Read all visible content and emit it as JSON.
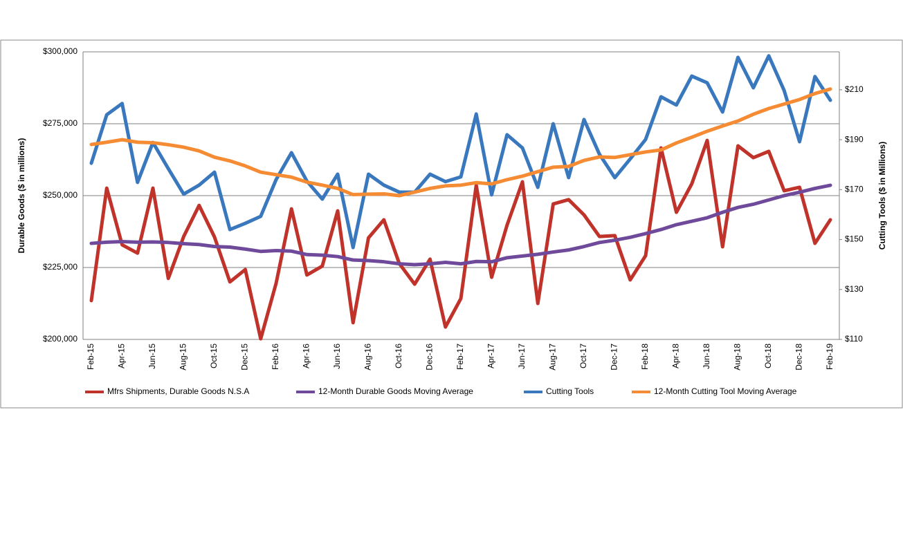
{
  "chart_data": {
    "type": "line",
    "y_label": "Durable Goods ($ in millions)",
    "y2_label": "Cutting Tools ($ in Millions)",
    "categories": [
      "Feb-15",
      null,
      "Apr-15",
      null,
      "Jun-15",
      null,
      "Aug-15",
      null,
      "Oct-15",
      null,
      "Dec-15",
      null,
      "Feb-16",
      null,
      "Apr-16",
      null,
      "Jun-16",
      null,
      "Aug-16",
      null,
      "Oct-16",
      null,
      "Dec-16",
      null,
      "Feb-17",
      null,
      "Apr-17",
      null,
      "Jun-17",
      null,
      "Aug-17",
      null,
      "Oct-17",
      null,
      "Dec-17",
      null,
      "Feb-18",
      null,
      "Apr-18",
      null,
      "Jun-18",
      null,
      "Aug-18",
      null,
      "Oct-18",
      null,
      "Dec-18",
      null,
      "Feb-19"
    ],
    "ylim": [
      200000,
      300000
    ],
    "yticks": [
      {
        "value": 200000,
        "label": "$200,000"
      },
      {
        "value": 225000,
        "label": "$225,000"
      },
      {
        "value": 250000,
        "label": "$250,000"
      },
      {
        "value": 275000,
        "label": "$275,000"
      },
      {
        "value": 300000,
        "label": "$300,000"
      }
    ],
    "y2lim": [
      110,
      225.2
    ],
    "y2ticks": [
      {
        "value": 110,
        "label": "$110"
      },
      {
        "value": 130,
        "label": "$130"
      },
      {
        "value": 150,
        "label": "$150"
      },
      {
        "value": 170,
        "label": "$170"
      },
      {
        "value": 190,
        "label": "$190"
      },
      {
        "value": 210,
        "label": "$210"
      }
    ],
    "grid": true,
    "legend": "bottom",
    "series": [
      {
        "name": "Mfrs Shipments, Durable Goods N.S.A",
        "color": "#c0332b",
        "values": [
          213500,
          252600,
          232900,
          230000,
          252600,
          221200,
          235800,
          246600,
          235600,
          220000,
          224300,
          200200,
          219500,
          245400,
          222400,
          225500,
          244700,
          205800,
          235300,
          241600,
          226400,
          219200,
          227900,
          204300,
          214200,
          253600,
          221600,
          239700,
          254800,
          212500,
          247100,
          248600,
          243300,
          235800,
          236100,
          220700,
          229100,
          266600,
          244200,
          254100,
          269200,
          232200,
          267300,
          263200,
          265400,
          251700,
          252900,
          233400,
          241600
        ]
      },
      {
        "name": "12-Month Durable Goods Moving Average",
        "color": "#6f4a9b",
        "values": [
          233400,
          233800,
          234000,
          233800,
          233900,
          233700,
          233300,
          233000,
          232300,
          232100,
          231400,
          230600,
          230900,
          230700,
          229500,
          229300,
          228800,
          227600,
          227400,
          227000,
          226300,
          226000,
          226300,
          226800,
          226300,
          227100,
          227000,
          228400,
          229000,
          229600,
          230400,
          231100,
          232300,
          233700,
          234500,
          235500,
          236800,
          238200,
          239900,
          241100,
          242300,
          244200,
          245900,
          247000,
          248500,
          250000,
          251200,
          252500,
          253600
        ]
      },
      {
        "name": "Cutting Tools",
        "color": "#3a78bd",
        "axis": "y2",
        "values": [
          180.6,
          200.0,
          204.5,
          172.9,
          188.9,
          178.4,
          168.2,
          171.8,
          177.0,
          154.0,
          156.5,
          159.3,
          174.0,
          184.8,
          173.4,
          166.2,
          176.2,
          146.8,
          176.2,
          171.8,
          169.0,
          169.0,
          176.2,
          173.2,
          175.1,
          200.3,
          167.9,
          192.0,
          186.7,
          170.9,
          196.4,
          174.8,
          198.1,
          184.2,
          174.8,
          182.3,
          190.1,
          207.2,
          203.9,
          215.5,
          212.8,
          201.1,
          223.0,
          210.8,
          223.6,
          209.7,
          189.2,
          215.3,
          205.8
        ]
      },
      {
        "name": "12-Month Cutting Tool Moving Average",
        "color": "#f58b33",
        "axis": "y2",
        "values": [
          188.1,
          189.0,
          190.0,
          189.0,
          188.8,
          188.0,
          187.0,
          185.5,
          183.0,
          181.5,
          179.5,
          177.0,
          176.0,
          175.0,
          173.0,
          171.8,
          170.5,
          168.0,
          168.2,
          168.3,
          167.6,
          169.0,
          170.5,
          171.5,
          171.8,
          172.8,
          172.3,
          174.0,
          175.4,
          177.2,
          179.0,
          179.3,
          181.7,
          183.1,
          182.9,
          184.0,
          185.1,
          185.9,
          188.7,
          191.0,
          193.4,
          195.5,
          197.5,
          200.2,
          202.5,
          204.3,
          206.1,
          208.5,
          210.3
        ]
      }
    ]
  }
}
